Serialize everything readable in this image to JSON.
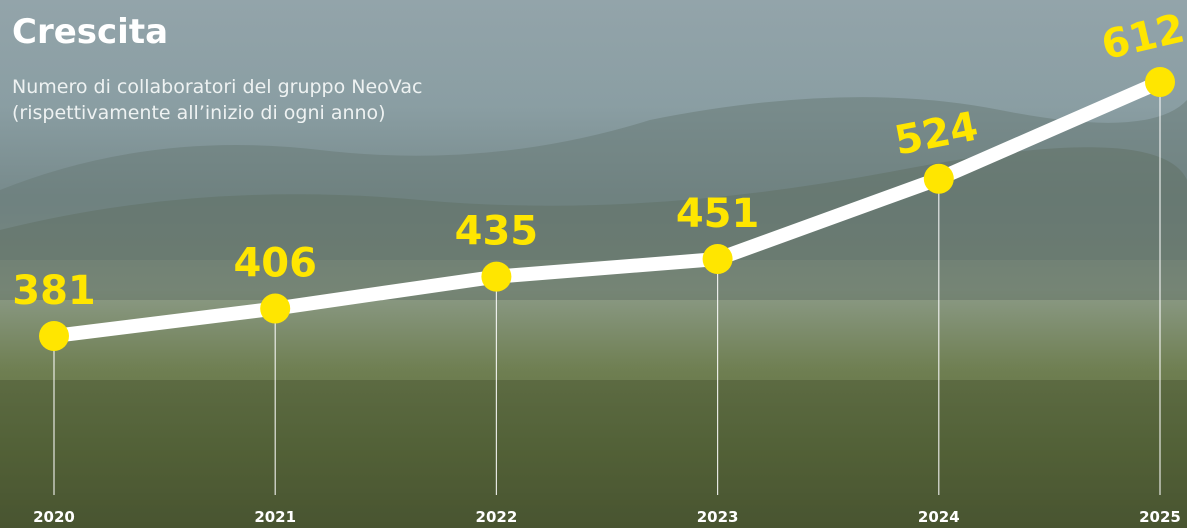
{
  "chart_data": {
    "type": "line",
    "title": "Crescita",
    "subtitle": "Numero di collaboratori del gruppo NeoVac (rispettivamente all’inizio di ogni anno)",
    "categories": [
      "2020",
      "2021",
      "2022",
      "2023",
      "2024",
      "2025"
    ],
    "values": [
      381,
      406,
      435,
      451,
      524,
      612
    ],
    "color": "#ffffff",
    "marker_color": "#ffe600"
  }
}
